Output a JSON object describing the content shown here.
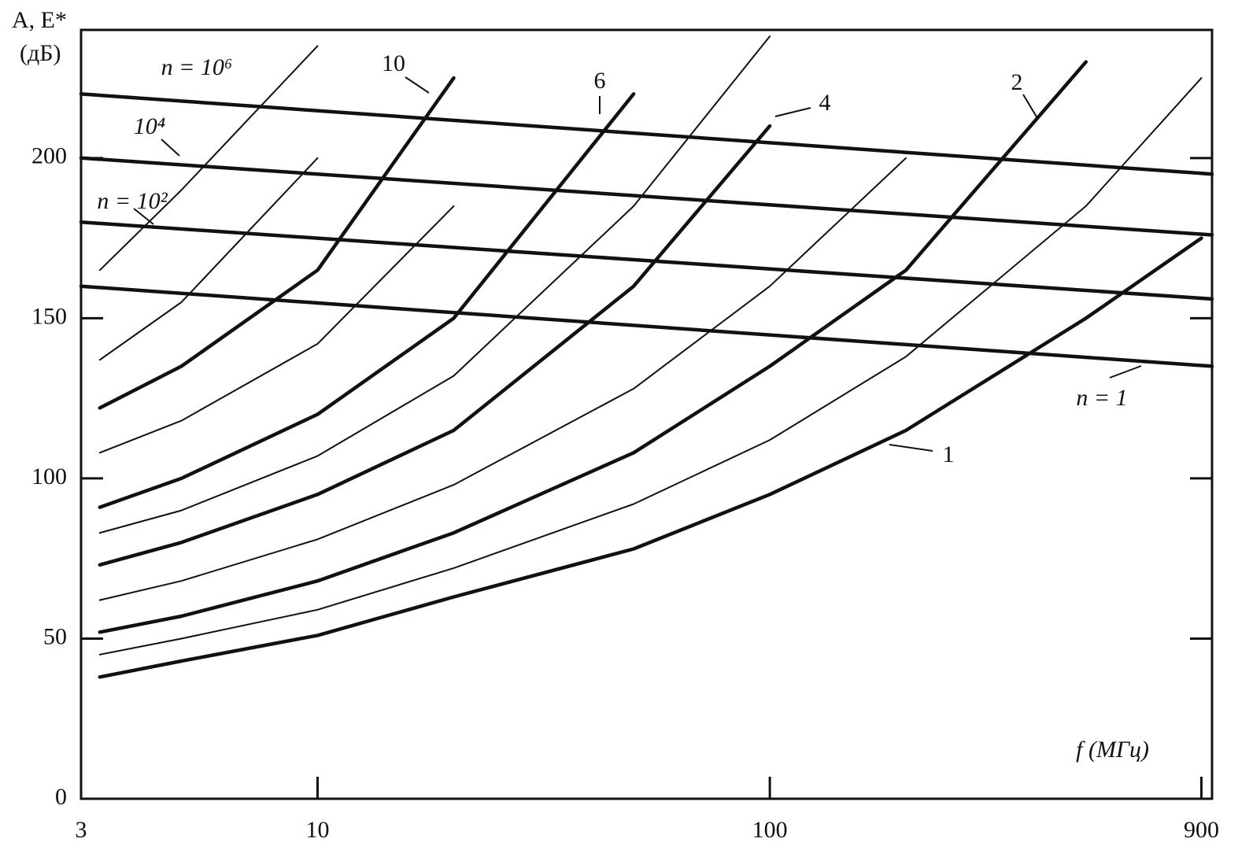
{
  "chart_data": {
    "type": "line",
    "y_label_line1": "A, E*",
    "y_label_line2": "(дБ)",
    "x_label": "f (МГц)",
    "log_x": true,
    "xlim": [
      3,
      950
    ],
    "xticks": [
      3,
      10,
      100,
      900
    ],
    "ylim": [
      0,
      240
    ],
    "yticks": [
      0,
      50,
      100,
      150,
      200
    ],
    "color": "#111111",
    "series": [
      {
        "name": "1",
        "bold": true,
        "x": [
          3.3,
          5,
          10,
          20,
          50,
          100,
          200,
          500,
          900
        ],
        "values": [
          38,
          43,
          51,
          63,
          78,
          95,
          115,
          150,
          175
        ]
      },
      {
        "bold": false,
        "x": [
          3.3,
          5,
          10,
          20,
          50,
          100,
          200,
          500,
          900
        ],
        "values": [
          45,
          50,
          59,
          72,
          92,
          112,
          138,
          185,
          225
        ]
      },
      {
        "name": "2",
        "bold": true,
        "x": [
          3.3,
          5,
          10,
          20,
          50,
          100,
          200,
          500,
          900
        ],
        "values": [
          52,
          57,
          68,
          83,
          108,
          135,
          165,
          230,
          null
        ]
      },
      {
        "bold": false,
        "x": [
          3.3,
          5,
          10,
          20,
          50,
          100,
          200,
          500,
          900
        ],
        "values": [
          62,
          68,
          81,
          98,
          128,
          160,
          200,
          null,
          null
        ]
      },
      {
        "name": "4",
        "bold": true,
        "x": [
          3.3,
          5,
          10,
          20,
          50,
          100,
          200,
          500,
          900
        ],
        "values": [
          73,
          80,
          95,
          115,
          160,
          210,
          null,
          null,
          null
        ]
      },
      {
        "bold": false,
        "x": [
          3.3,
          5,
          10,
          20,
          50,
          100,
          200,
          500,
          900
        ],
        "values": [
          83,
          90,
          107,
          132,
          185,
          238,
          null,
          null,
          null
        ]
      },
      {
        "name": "6",
        "bold": true,
        "x": [
          3.3,
          5,
          10,
          20,
          50,
          100,
          200,
          500,
          900
        ],
        "values": [
          91,
          100,
          120,
          150,
          220,
          null,
          null,
          null,
          null
        ]
      },
      {
        "bold": false,
        "x": [
          3.3,
          5,
          10,
          20,
          50,
          100,
          200,
          500,
          900
        ],
        "values": [
          108,
          118,
          142,
          185,
          null,
          null,
          null,
          null,
          null
        ]
      },
      {
        "name": "10",
        "bold": true,
        "x": [
          3.3,
          5,
          10,
          20,
          50,
          100,
          200,
          500,
          900
        ],
        "values": [
          122,
          135,
          165,
          225,
          null,
          null,
          null,
          null,
          null
        ]
      },
      {
        "bold": false,
        "x": [
          3.3,
          5,
          10,
          20,
          50,
          100,
          200,
          500,
          900
        ],
        "values": [
          137,
          155,
          200,
          null,
          null,
          null,
          null,
          null,
          null
        ]
      },
      {
        "bold": false,
        "x": [
          3.3,
          5,
          10,
          20,
          50,
          100,
          200,
          500,
          900
        ],
        "values": [
          165,
          190,
          235,
          null,
          null,
          null,
          null,
          null,
          null
        ]
      },
      {
        "name": "n = 10⁶",
        "bold": true,
        "x": [
          3,
          950
        ],
        "values": [
          220,
          195
        ]
      },
      {
        "name": "10⁴",
        "bold": true,
        "x": [
          3,
          950
        ],
        "values": [
          200,
          176
        ]
      },
      {
        "name": "n = 10²",
        "bold": true,
        "x": [
          3,
          950
        ],
        "values": [
          180,
          156
        ]
      },
      {
        "name": "n = 1",
        "bold": true,
        "x": [
          3,
          950
        ],
        "values": [
          160,
          135
        ]
      }
    ]
  }
}
